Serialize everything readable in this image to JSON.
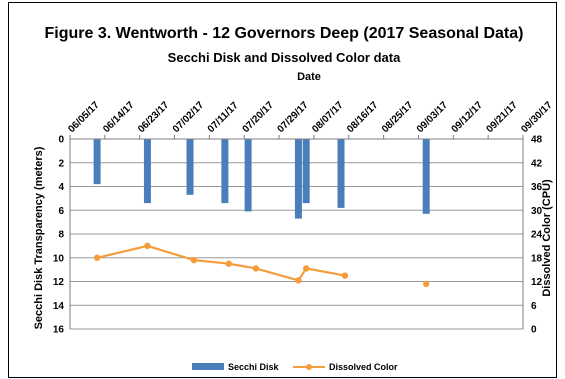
{
  "chart_data": {
    "type": "bar+line",
    "title": "Figure 3. Wentworth - 12 Governors Deep (2017 Seasonal Data)",
    "subtitle": "Secchi Disk and Dissolved Color data",
    "xlabel": "Date",
    "ylabel_left": "Secchi Disk Transparency (meters)",
    "ylabel_right": "Dissolved Color (CPU)",
    "x_tick_labels": [
      "06/05/17",
      "06/14/17",
      "06/23/17",
      "07/02/17",
      "07/11/17",
      "07/20/17",
      "07/29/17",
      "08/07/17",
      "08/16/17",
      "08/25/17",
      "09/03/17",
      "09/12/17",
      "09/21/17",
      "09/30/17"
    ],
    "x_range": [
      "2017-06-05",
      "2017-09-30"
    ],
    "x_axis_position": "top",
    "y_left": {
      "range": [
        0,
        16
      ],
      "reversed": true,
      "ticks": [
        0,
        2,
        4,
        6,
        8,
        10,
        12,
        14,
        16
      ]
    },
    "y_right": {
      "range": [
        0,
        48
      ],
      "ticks": [
        0,
        6,
        12,
        18,
        24,
        30,
        36,
        42,
        48
      ]
    },
    "grid": "horizontal",
    "legend_position": "bottom",
    "series": [
      {
        "name": "Secchi Disk",
        "type": "bar",
        "axis": "left",
        "color": "#4a7ebb",
        "points": [
          {
            "x": "2017-06-12",
            "y": 3.8
          },
          {
            "x": "2017-06-25",
            "y": 5.4
          },
          {
            "x": "2017-07-06",
            "y": 4.7
          },
          {
            "x": "2017-07-15",
            "y": 5.4
          },
          {
            "x": "2017-07-21",
            "y": 6.1
          },
          {
            "x": "2017-08-03",
            "y": 6.7
          },
          {
            "x": "2017-08-05",
            "y": 5.4
          },
          {
            "x": "2017-08-14",
            "y": 5.8
          },
          {
            "x": "2017-09-05",
            "y": 6.3
          }
        ]
      },
      {
        "name": "Dissolved Color",
        "type": "line",
        "axis": "right",
        "color": "#f59d3d",
        "points": [
          {
            "x": "2017-06-12",
            "y": 18.0
          },
          {
            "x": "2017-06-25",
            "y": 21.0
          },
          {
            "x": "2017-07-07",
            "y": 17.4
          },
          {
            "x": "2017-07-16",
            "y": 16.5
          },
          {
            "x": "2017-07-23",
            "y": 15.3
          },
          {
            "x": "2017-08-03",
            "y": 12.3
          },
          {
            "x": "2017-08-05",
            "y": 15.3
          },
          {
            "x": "2017-08-15",
            "y": 13.5
          },
          {
            "x": "2017-09-05",
            "y": 11.4
          }
        ],
        "gaps_after": [
          "2017-08-15"
        ]
      }
    ]
  }
}
